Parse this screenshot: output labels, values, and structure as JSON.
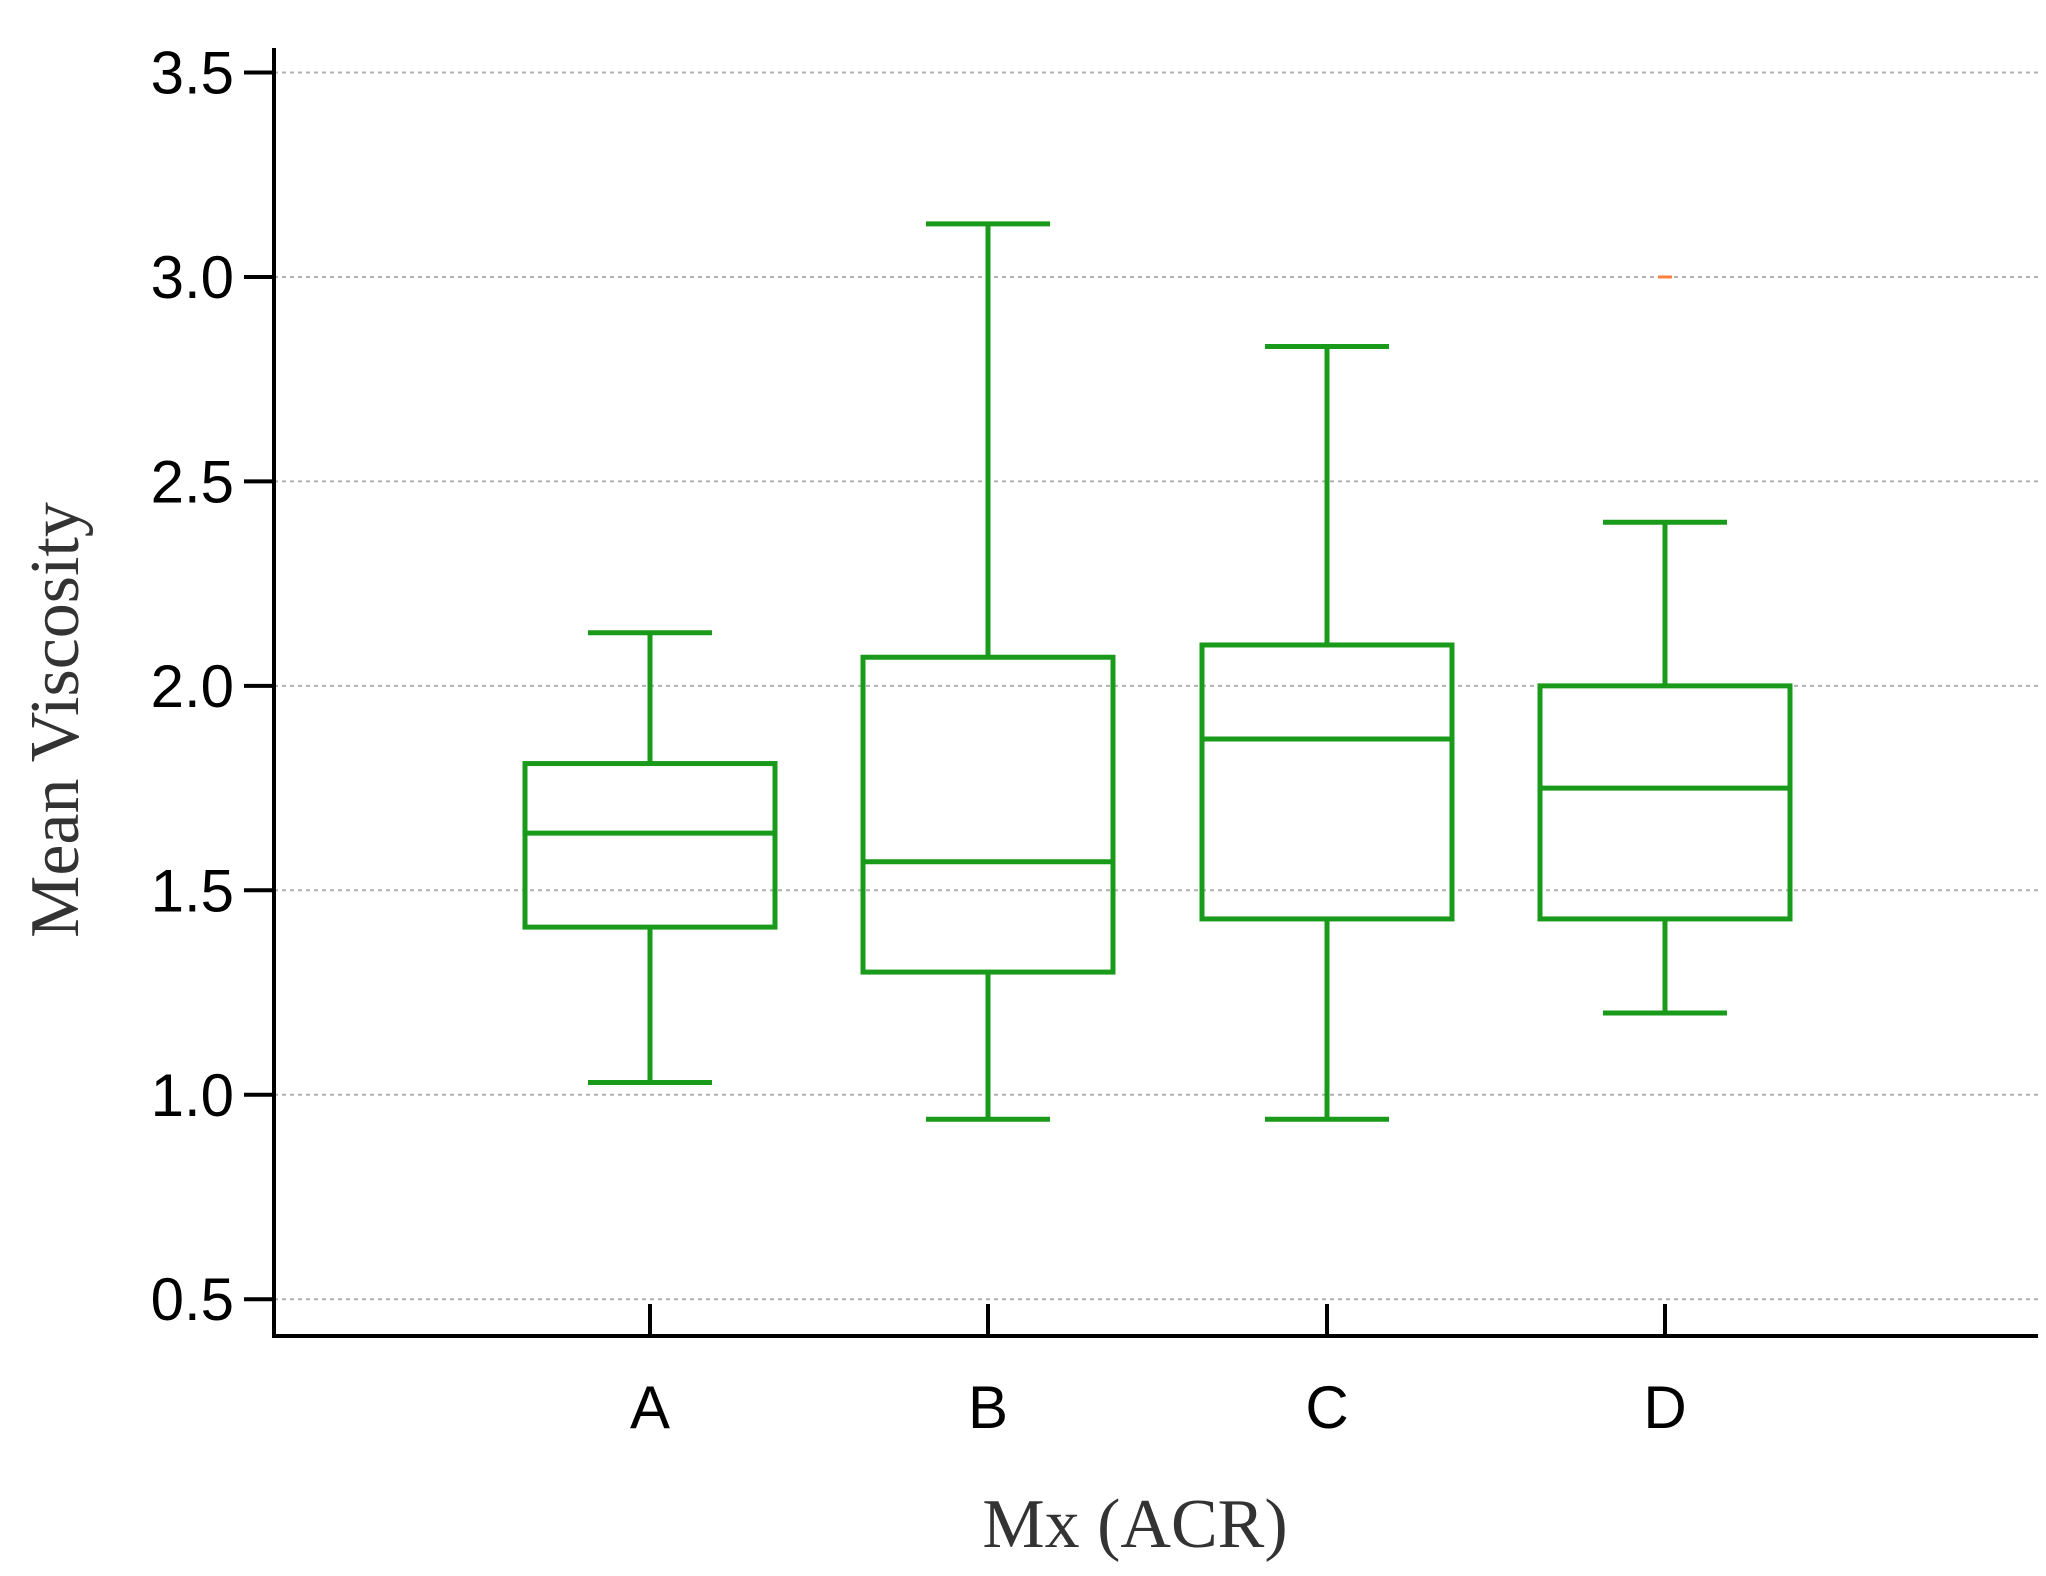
{
  "chart_data": {
    "type": "box",
    "title": "",
    "xlabel": "Mx (ACR)",
    "ylabel": "Mean Viscosity",
    "categories": [
      "A",
      "B",
      "C",
      "D"
    ],
    "ylim": [
      0.41,
      3.56
    ],
    "yticks": [
      0.5,
      1.0,
      1.5,
      2.0,
      2.5,
      3.0,
      3.5
    ],
    "ytick_labels": [
      "0.5",
      "1.0",
      "1.5",
      "2.0",
      "2.5",
      "3.0",
      "3.5"
    ],
    "grid": true,
    "box_color": "#1a9a1a",
    "outlier_color": "#ff7f3f",
    "boxes": [
      {
        "category": "A",
        "whisker_low": 1.03,
        "q1": 1.41,
        "median": 1.64,
        "q3": 1.81,
        "whisker_high": 2.13,
        "outliers": []
      },
      {
        "category": "B",
        "whisker_low": 0.94,
        "q1": 1.3,
        "median": 1.57,
        "q3": 2.07,
        "whisker_high": 3.13,
        "outliers": []
      },
      {
        "category": "C",
        "whisker_low": 0.94,
        "q1": 1.43,
        "median": 1.87,
        "q3": 2.1,
        "whisker_high": 2.83,
        "outliers": []
      },
      {
        "category": "D",
        "whisker_low": 1.2,
        "q1": 1.43,
        "median": 1.75,
        "q3": 2.0,
        "whisker_high": 2.4,
        "outliers": [
          3.0
        ]
      }
    ]
  }
}
